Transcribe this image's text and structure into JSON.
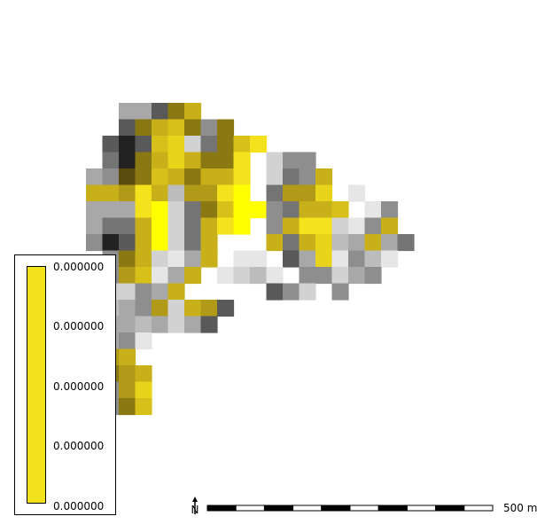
{
  "map": {
    "cell_size": 18.5,
    "origin": [
      97,
      116
    ],
    "colors": {
      "Y": "#ffff00",
      "y": "#f4e21c",
      "b": "#e8d41a",
      "o": "#d8c01a",
      "m": "#c8b01a",
      "O": "#b09a18",
      "D": "#8a7812",
      "K": "#5a4a0c",
      "w": "#f8f8f8",
      "L": "#e6e6e6",
      "l": "#d2d2d2",
      "g": "#bcbcbc",
      "G": "#a8a8a8",
      "h": "#8e8e8e",
      "H": "#747474",
      "k": "#595959",
      "x": "#3c3c3c",
      "X": "#222222"
    },
    "grid": [
      "..GGkDm...........",
      "..kDmoDhD.........",
      ".kXkoblHDoy.......",
      ".HXDmbmDDy.lhh....",
      "GhKDomDmmy.lHhm...",
      "mmOymgOOyY.HOOb.L.",
      "GGGyYlHDoYYhHmmo.Lh",
      "GHHmYlHmyY.hmyylLhm",
      "hXkmYlHm...mHmbgGmGH",
      ".hDmlLGm.LL.kGbLhgL",
      ".hOoLGm.LlgL.hhlGh",
      ".llhGm.....khl.h",
      ".gGhOlmOk",
      ".GGgGlGk",
      ".GhL",
      ".Om",
      ".DOm",
      ".hOb",
      ".hDo"
    ]
  },
  "legend": {
    "bar_color": "#f2e21d",
    "labels": [
      "0.000000",
      "0.000000",
      "0.000000",
      "0.000000",
      "0.000000"
    ]
  },
  "north_arrow": {
    "label": "N"
  },
  "scalebar": {
    "label": "500 m"
  }
}
